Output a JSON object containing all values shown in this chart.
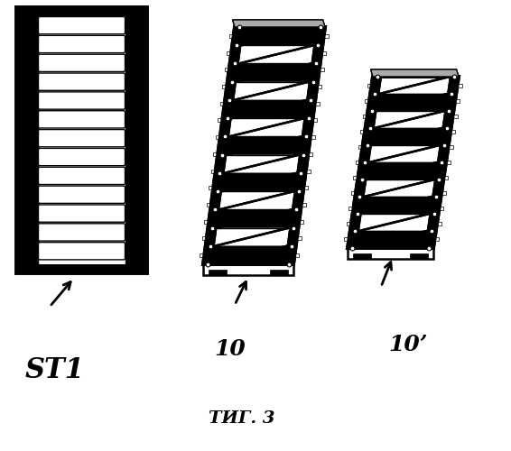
{
  "bg_color": "#ffffff",
  "title": "ΤИГ. 3",
  "label1": "ST1",
  "label2": "10",
  "label3": "10’",
  "fig_width": 5.66,
  "fig_height": 5.0,
  "dpi": 100,
  "black": "#000000",
  "white": "#ffffff",
  "gray_light": "#e8e8e8",
  "gray_mid": "#aaaaaa",
  "gray_dark": "#555555"
}
